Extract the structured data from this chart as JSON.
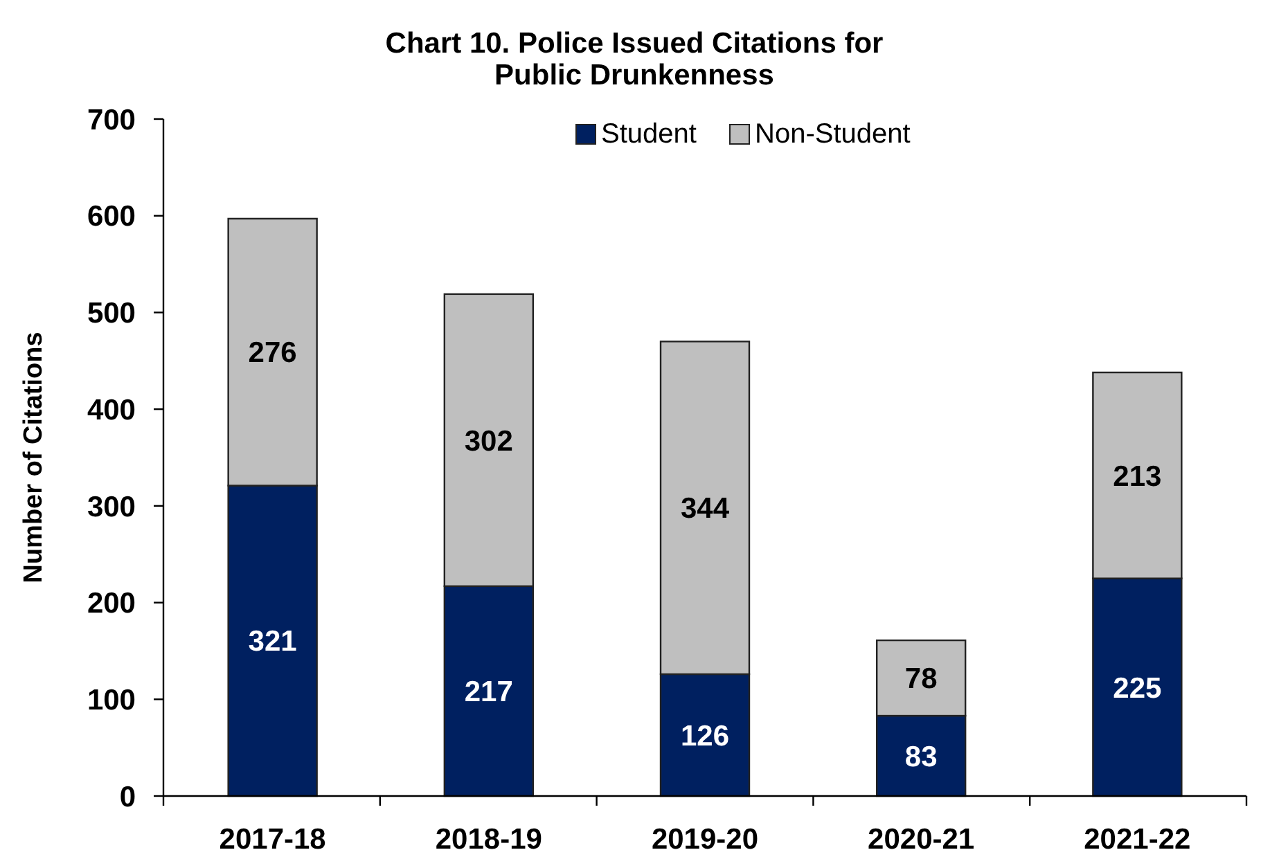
{
  "chart_data": {
    "type": "bar",
    "title": "Chart 10. Police Issued Citations for Public Drunkenness",
    "ylabel": "Number of Citations",
    "categories": [
      "2017-18",
      "2018-19",
      "2019-20",
      "2020-21",
      "2021-22"
    ],
    "series": [
      {
        "name": "Student",
        "color": "#002060",
        "values": [
          321,
          217,
          126,
          83,
          225
        ]
      },
      {
        "name": "Non-Student",
        "color": "#bfbfbf",
        "values": [
          276,
          302,
          344,
          78,
          213
        ]
      }
    ],
    "stacked": true,
    "data_labels": true,
    "ylim": [
      0,
      700
    ],
    "yticks": [
      0,
      100,
      200,
      300,
      400,
      500,
      600,
      700
    ],
    "grid": false,
    "legend": "top"
  }
}
